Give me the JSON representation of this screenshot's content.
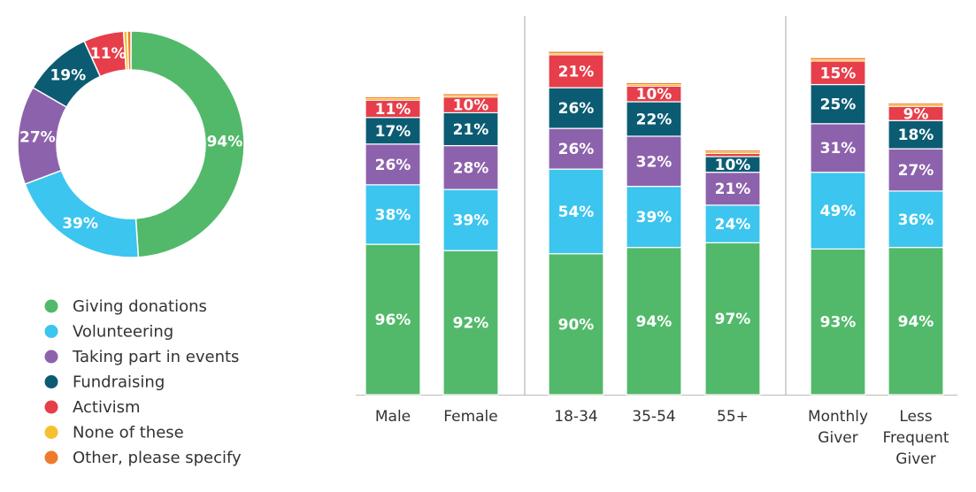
{
  "chart_data": [
    {
      "type": "pie",
      "variant": "donut",
      "series_order": [
        "Giving donations",
        "Volunteering",
        "Taking part in events",
        "Fundraising",
        "Activism",
        "None of these",
        "Other, please specify"
      ],
      "values": [
        94,
        39,
        27,
        19,
        11,
        1,
        1
      ],
      "data_labels": [
        "94%",
        "39%",
        "27%",
        "19%",
        "11%",
        "",
        ""
      ]
    },
    {
      "type": "bar",
      "stacked": true,
      "categories": [
        "Male",
        "Female",
        "18-34",
        "35-54",
        "55+",
        "Monthly Giver",
        "Less Frequent Giver"
      ],
      "category_groups": [
        [
          0,
          1
        ],
        [
          2,
          3,
          4
        ],
        [
          5,
          6
        ]
      ],
      "series": [
        {
          "name": "Giving donations",
          "values": [
            96,
            92,
            90,
            94,
            97,
            93,
            94
          ]
        },
        {
          "name": "Volunteering",
          "values": [
            38,
            39,
            54,
            39,
            24,
            49,
            36
          ]
        },
        {
          "name": "Taking part in events",
          "values": [
            26,
            28,
            26,
            32,
            21,
            31,
            27
          ]
        },
        {
          "name": "Fundraising",
          "values": [
            17,
            21,
            26,
            22,
            10,
            25,
            18
          ]
        },
        {
          "name": "Activism",
          "values": [
            11,
            10,
            21,
            10,
            2,
            15,
            9
          ]
        },
        {
          "name": "None of these",
          "values": [
            1,
            1,
            1,
            1,
            1,
            1,
            1
          ]
        },
        {
          "name": "Other, please specify",
          "values": [
            1,
            1,
            1,
            1,
            1,
            1,
            1
          ]
        }
      ],
      "data_labels": [
        [
          "96%",
          "92%",
          "90%",
          "94%",
          "97%",
          "93%",
          "94%"
        ],
        [
          "38%",
          "39%",
          "54%",
          "39%",
          "24%",
          "49%",
          "36%"
        ],
        [
          "26%",
          "28%",
          "26%",
          "32%",
          "21%",
          "31%",
          "27%"
        ],
        [
          "17%",
          "21%",
          "26%",
          "22%",
          "10%",
          "25%",
          "18%"
        ],
        [
          "11%",
          "10%",
          "21%",
          "10%",
          "",
          "15%",
          "9%"
        ],
        [
          "",
          "",
          "",
          "",
          "",
          "",
          ""
        ],
        [
          "",
          "",
          "",
          "",
          "",
          "",
          ""
        ]
      ],
      "grid": false
    }
  ],
  "legend": {
    "placement": "bottom-left",
    "items": [
      {
        "label": "Giving donations",
        "color": "#52b96a"
      },
      {
        "label": "Volunteering",
        "color": "#3cc5ee"
      },
      {
        "label": "Taking part in events",
        "color": "#8d62ac"
      },
      {
        "label": "Fundraising",
        "color": "#0b5c73"
      },
      {
        "label": "Activism",
        "color": "#e63e4a"
      },
      {
        "label": "None of these",
        "color": "#f6c12f"
      },
      {
        "label": "Other, please specify",
        "color": "#ee7b2c"
      }
    ]
  },
  "category_labels": [
    [
      "Male"
    ],
    [
      "Female"
    ],
    [
      "18-34"
    ],
    [
      "35-54"
    ],
    [
      "55+"
    ],
    [
      "Monthly",
      "Giver"
    ],
    [
      "Less",
      "Frequent",
      "Giver"
    ]
  ]
}
